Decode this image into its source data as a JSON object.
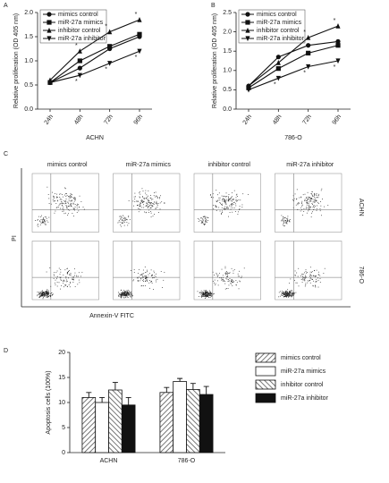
{
  "chart_data": [
    {
      "type": "line",
      "panel": "A",
      "xlabel": "ACHN",
      "ylabel": "Relative proliferation (OD 405 nm)",
      "categories": [
        "24h",
        "48h",
        "72h",
        "96h"
      ],
      "ylim": [
        0,
        2.0
      ],
      "yticks": [
        {
          "value": 0,
          "label": "0.0"
        },
        {
          "value": 0.5,
          "label": "0.5"
        },
        {
          "value": 1,
          "label": "1.0"
        },
        {
          "value": 1.5,
          "label": "1.5"
        },
        {
          "value": 2,
          "label": "2.0"
        }
      ],
      "series": [
        {
          "name": "mimics control",
          "color": "#111111",
          "marker": "circle",
          "values": [
            0.55,
            0.85,
            1.25,
            1.5
          ]
        },
        {
          "name": "miR-27a mimics",
          "color": "#111111",
          "marker": "square",
          "values": [
            0.55,
            1.0,
            1.3,
            1.55
          ]
        },
        {
          "name": "inhibitor control",
          "color": "#111111",
          "marker": "triangle-up",
          "values": [
            0.6,
            1.2,
            1.6,
            1.85
          ]
        },
        {
          "name": "miR-27a inhibitor",
          "color": "#111111",
          "marker": "triangle-down",
          "values": [
            0.55,
            0.7,
            0.95,
            1.2
          ]
        }
      ],
      "annotations": [
        {
          "text": "*",
          "series": 2,
          "index": 1
        },
        {
          "text": "*",
          "series": 3,
          "index": 1
        },
        {
          "text": "*",
          "series": 2,
          "index": 2
        },
        {
          "text": "*",
          "series": 3,
          "index": 2
        },
        {
          "text": "*",
          "series": 2,
          "index": 3
        },
        {
          "text": "*",
          "series": 3,
          "index": 3
        }
      ]
    },
    {
      "type": "line",
      "panel": "B",
      "xlabel": "786-O",
      "ylabel": "Relative proliferation (OD 405 nm)",
      "categories": [
        "24h",
        "48h",
        "72h",
        "96h"
      ],
      "ylim": [
        0,
        2.5
      ],
      "yticks": [
        {
          "value": 0,
          "label": "0.0"
        },
        {
          "value": 0.5,
          "label": "0.5"
        },
        {
          "value": 1,
          "label": "1.0"
        },
        {
          "value": 1.5,
          "label": "1.5"
        },
        {
          "value": 2,
          "label": "2.0"
        },
        {
          "value": 2.5,
          "label": "2.5"
        }
      ],
      "series": [
        {
          "name": "mimics control",
          "color": "#111111",
          "marker": "circle",
          "values": [
            0.6,
            1.35,
            1.65,
            1.75
          ]
        },
        {
          "name": "miR-27a mimics",
          "color": "#111111",
          "marker": "square",
          "values": [
            0.55,
            1.05,
            1.45,
            1.65
          ]
        },
        {
          "name": "inhibitor control",
          "color": "#111111",
          "marker": "triangle-up",
          "values": [
            0.6,
            1.2,
            1.85,
            2.15
          ]
        },
        {
          "name": "miR-27a inhibitor",
          "color": "#111111",
          "marker": "triangle-down",
          "values": [
            0.5,
            0.8,
            1.1,
            1.25
          ]
        }
      ],
      "annotations": [
        {
          "text": "*",
          "series": 3,
          "index": 1
        },
        {
          "text": "*",
          "series": 2,
          "index": 2
        },
        {
          "text": "*",
          "series": 3,
          "index": 2
        },
        {
          "text": "*",
          "series": 2,
          "index": 3
        },
        {
          "text": "*",
          "series": 3,
          "index": 3
        }
      ]
    },
    {
      "type": "flow",
      "panel": "C",
      "xlabel": "Annexin-V FITC",
      "ylabel": "PI",
      "columns": [
        "mimics control",
        "miR-27a mimics",
        "inhibitor control",
        "miR-27a inhibitor"
      ],
      "rows": [
        "ACHN",
        "786-O"
      ]
    },
    {
      "type": "bar",
      "panel": "D",
      "ylabel": "Apoptosis cells (100%)",
      "categories": [
        "ACHN",
        "786-O"
      ],
      "ylim": [
        0,
        20
      ],
      "yticks": [
        0,
        5,
        10,
        15,
        20
      ],
      "series": [
        {
          "name": "mimics control",
          "color": "#555555",
          "pattern": "hatch-right",
          "values": [
            11,
            12
          ],
          "errors": [
            1,
            1
          ]
        },
        {
          "name": "miR-27a mimics",
          "color": "#ffffff",
          "pattern": "none",
          "values": [
            10,
            14.2
          ],
          "errors": [
            1,
            0.6
          ]
        },
        {
          "name": "inhibitor control",
          "color": "#555555",
          "pattern": "hatch-left",
          "values": [
            12.5,
            12.6
          ],
          "errors": [
            1.5,
            1.2
          ]
        },
        {
          "name": "miR-27a inhibitor",
          "color": "#111111",
          "pattern": "none",
          "values": [
            9.5,
            11.6
          ],
          "errors": [
            1.5,
            1.6
          ]
        }
      ]
    }
  ]
}
